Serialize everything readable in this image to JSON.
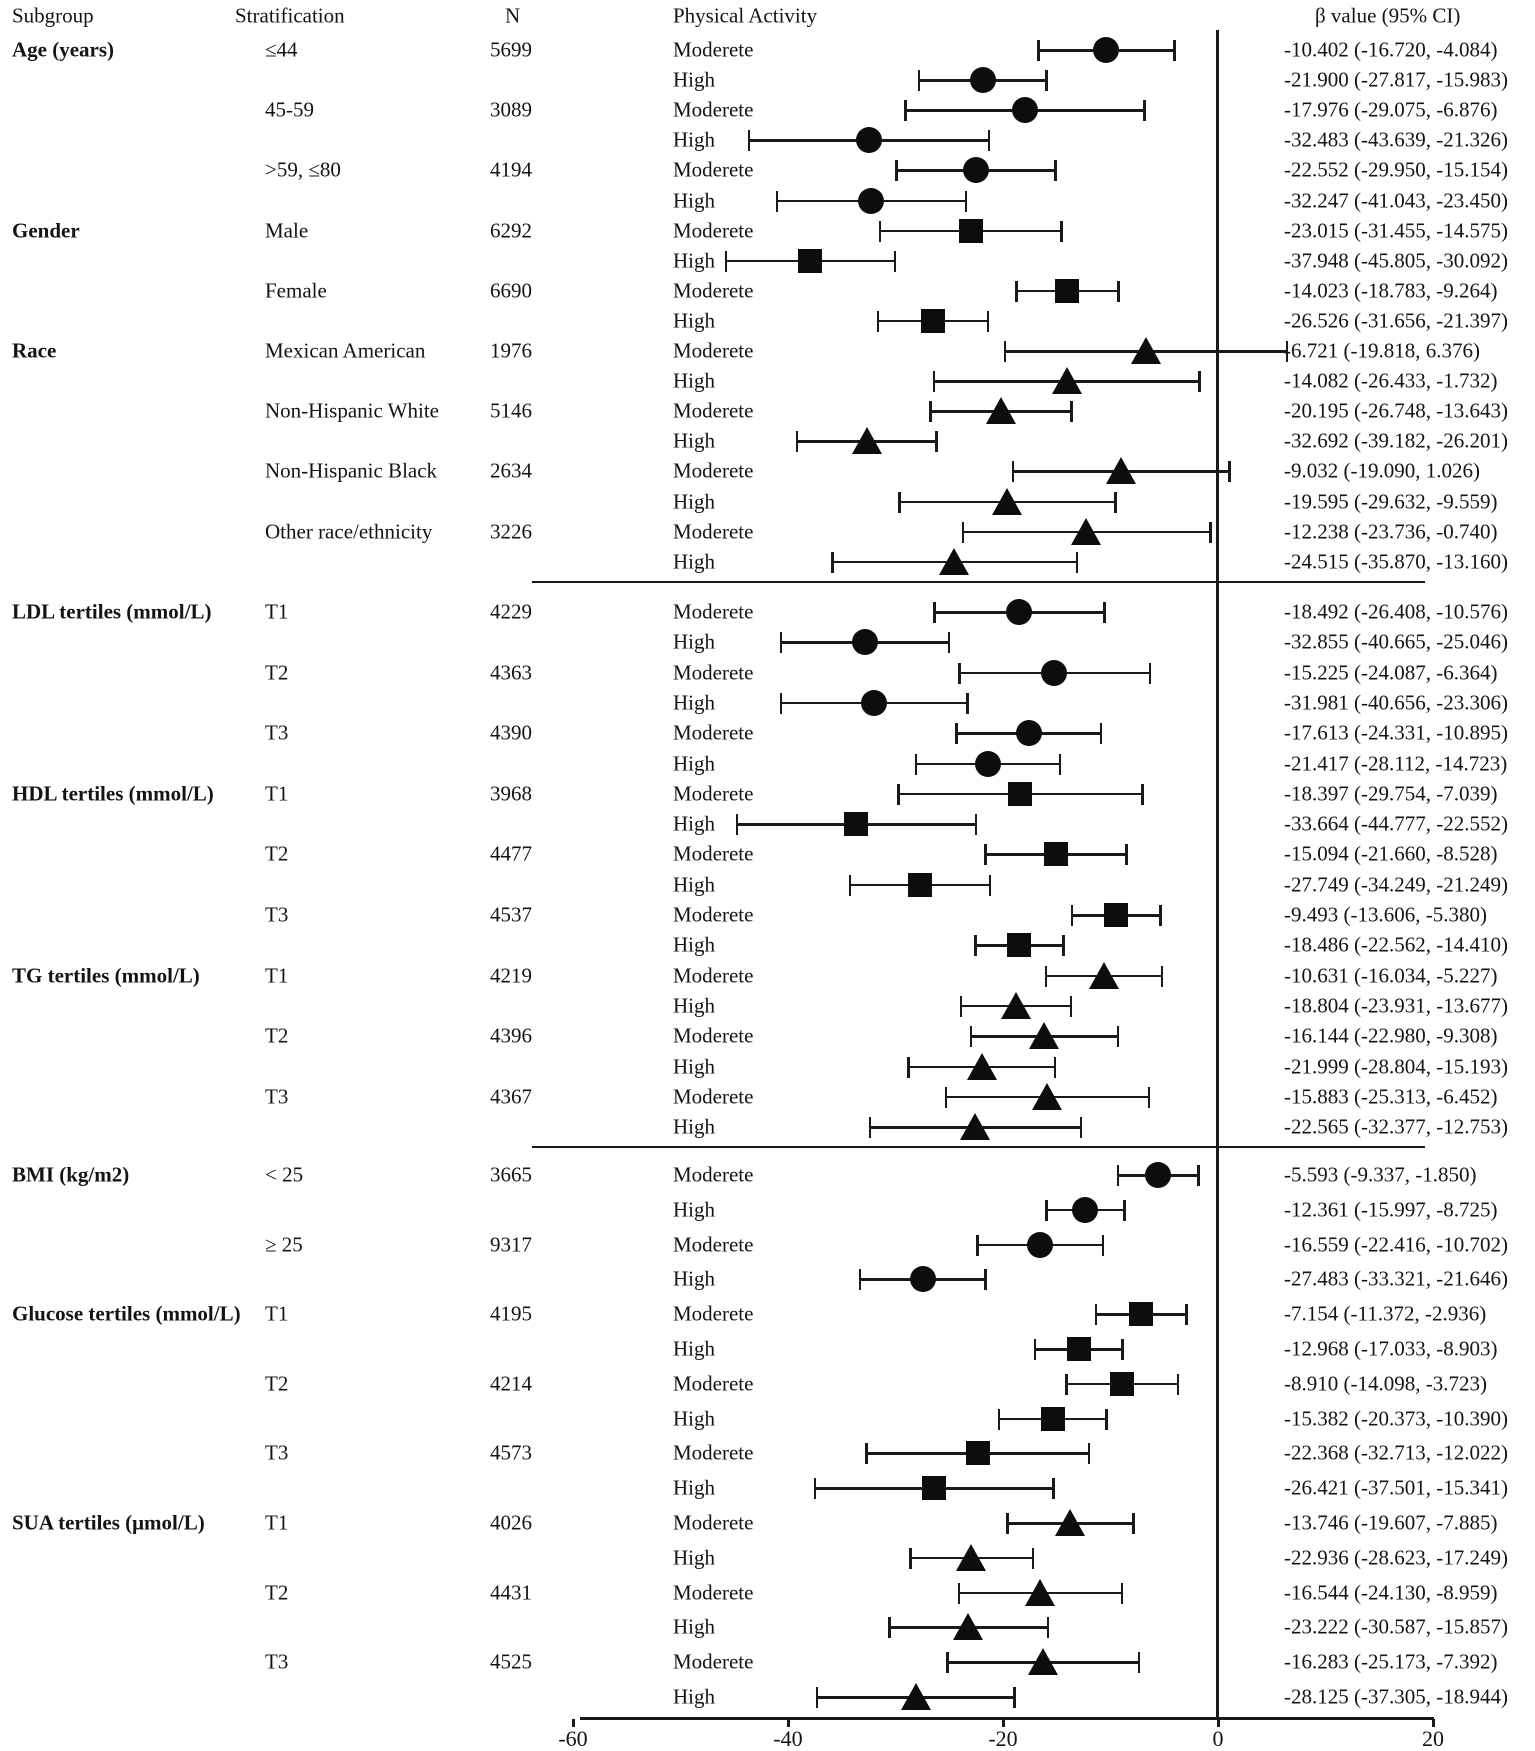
{
  "chart_data": {
    "type": "scatter",
    "subtype": "forest-plot",
    "title": "",
    "xlabel": "",
    "ylabel": "",
    "grid": false,
    "legend": "none",
    "marker_color": "#0d0d0d",
    "columns": [
      "Subgroup",
      "Stratification",
      "N",
      "Physical Activity",
      "β value (95% CI)"
    ],
    "x_axis": {
      "range": [
        -60,
        20
      ],
      "ticks": [
        {
          "label": "-60",
          "value": -60
        },
        {
          "label": "-40",
          "value": -40
        },
        {
          "label": "-20",
          "value": -20
        },
        {
          "label": "0",
          "value": 0
        },
        {
          "label": "20",
          "value": 20
        }
      ],
      "reference_line_at": 0
    },
    "separators_after_groups": [
      2,
      5
    ],
    "groups": [
      {
        "subgroup": "Age (years)",
        "marker": "circle",
        "strata": [
          {
            "label": "≤44",
            "n": "5699",
            "rows": [
              {
                "activity": "Moderete",
                "beta": -10.402,
                "lo": -16.72,
                "hi": -4.084,
                "text": "-10.402 (-16.720, -4.084)"
              },
              {
                "activity": "High",
                "beta": -21.9,
                "lo": -27.817,
                "hi": -15.983,
                "text": "-21.900 (-27.817, -15.983)"
              }
            ]
          },
          {
            "label": "45-59",
            "n": "3089",
            "rows": [
              {
                "activity": "Moderete",
                "beta": -17.976,
                "lo": -29.075,
                "hi": -6.876,
                "text": "-17.976 (-29.075, -6.876)"
              },
              {
                "activity": "High",
                "beta": -32.483,
                "lo": -43.639,
                "hi": -21.326,
                "text": "-32.483 (-43.639, -21.326)"
              }
            ]
          },
          {
            "label": ">59, ≤80",
            "n": "4194",
            "rows": [
              {
                "activity": "Moderete",
                "beta": -22.552,
                "lo": -29.95,
                "hi": -15.154,
                "text": "-22.552 (-29.950, -15.154)"
              },
              {
                "activity": "High",
                "beta": -32.247,
                "lo": -41.043,
                "hi": -23.45,
                "text": "-32.247 (-41.043, -23.450)"
              }
            ]
          }
        ]
      },
      {
        "subgroup": "Gender",
        "marker": "square",
        "strata": [
          {
            "label": "Male",
            "n": "6292",
            "rows": [
              {
                "activity": "Moderete",
                "beta": -23.015,
                "lo": -31.455,
                "hi": -14.575,
                "text": "-23.015 (-31.455, -14.575)"
              },
              {
                "activity": "High",
                "beta": -37.948,
                "lo": -45.805,
                "hi": -30.092,
                "text": "-37.948 (-45.805, -30.092)"
              }
            ]
          },
          {
            "label": "Female",
            "n": "6690",
            "rows": [
              {
                "activity": "Moderete",
                "beta": -14.023,
                "lo": -18.783,
                "hi": -9.264,
                "text": "-14.023 (-18.783, -9.264)"
              },
              {
                "activity": "High",
                "beta": -26.526,
                "lo": -31.656,
                "hi": -21.397,
                "text": "-26.526 (-31.656, -21.397)"
              }
            ]
          }
        ]
      },
      {
        "subgroup": "Race",
        "marker": "triangle",
        "strata": [
          {
            "label": "Mexican American",
            "n": "1976",
            "rows": [
              {
                "activity": "Moderete",
                "beta": -6.721,
                "lo": -19.818,
                "hi": 6.376,
                "text": "-6.721 (-19.818, 6.376)"
              },
              {
                "activity": "High",
                "beta": -14.082,
                "lo": -26.433,
                "hi": -1.732,
                "text": "-14.082 (-26.433, -1.732)"
              }
            ]
          },
          {
            "label": "Non-Hispanic White",
            "n": "5146",
            "rows": [
              {
                "activity": "Moderete",
                "beta": -20.195,
                "lo": -26.748,
                "hi": -13.643,
                "text": "-20.195 (-26.748, -13.643)"
              },
              {
                "activity": "High",
                "beta": -32.692,
                "lo": -39.182,
                "hi": -26.201,
                "text": "-32.692 (-39.182, -26.201)"
              }
            ]
          },
          {
            "label": "Non-Hispanic Black",
            "n": "2634",
            "rows": [
              {
                "activity": "Moderete",
                "beta": -9.032,
                "lo": -19.09,
                "hi": 1.026,
                "text": "-9.032 (-19.090, 1.026)"
              },
              {
                "activity": "High",
                "beta": -19.595,
                "lo": -29.632,
                "hi": -9.559,
                "text": "-19.595 (-29.632, -9.559)"
              }
            ]
          },
          {
            "label": "Other race/ethnicity",
            "n": "3226",
            "rows": [
              {
                "activity": "Moderete",
                "beta": -12.238,
                "lo": -23.736,
                "hi": -0.74,
                "text": "-12.238 (-23.736, -0.740)"
              },
              {
                "activity": "High",
                "beta": -24.515,
                "lo": -35.87,
                "hi": -13.16,
                "text": "-24.515 (-35.870, -13.160)"
              }
            ]
          }
        ]
      },
      {
        "subgroup": "LDL tertiles (mmol/L)",
        "marker": "circle",
        "strata": [
          {
            "label": "T1",
            "n": "4229",
            "rows": [
              {
                "activity": "Moderete",
                "beta": -18.492,
                "lo": -26.408,
                "hi": -10.576,
                "text": "-18.492 (-26.408, -10.576)"
              },
              {
                "activity": "High",
                "beta": -32.855,
                "lo": -40.665,
                "hi": -25.046,
                "text": "-32.855 (-40.665, -25.046)"
              }
            ]
          },
          {
            "label": "T2",
            "n": "4363",
            "rows": [
              {
                "activity": "Moderete",
                "beta": -15.225,
                "lo": -24.087,
                "hi": -6.364,
                "text": "-15.225 (-24.087, -6.364)"
              },
              {
                "activity": "High",
                "beta": -31.981,
                "lo": -40.656,
                "hi": -23.306,
                "text": "-31.981 (-40.656, -23.306)"
              }
            ]
          },
          {
            "label": "T3",
            "n": "4390",
            "rows": [
              {
                "activity": "Moderete",
                "beta": -17.613,
                "lo": -24.331,
                "hi": -10.895,
                "text": "-17.613 (-24.331, -10.895)"
              },
              {
                "activity": "High",
                "beta": -21.417,
                "lo": -28.112,
                "hi": -14.723,
                "text": "-21.417 (-28.112, -14.723)"
              }
            ]
          }
        ]
      },
      {
        "subgroup": "HDL tertiles (mmol/L)",
        "marker": "square",
        "strata": [
          {
            "label": "T1",
            "n": "3968",
            "rows": [
              {
                "activity": "Moderete",
                "beta": -18.397,
                "lo": -29.754,
                "hi": -7.039,
                "text": "-18.397 (-29.754, -7.039)"
              },
              {
                "activity": "High",
                "beta": -33.664,
                "lo": -44.777,
                "hi": -22.552,
                "text": "-33.664 (-44.777, -22.552)"
              }
            ]
          },
          {
            "label": "T2",
            "n": "4477",
            "rows": [
              {
                "activity": "Moderete",
                "beta": -15.094,
                "lo": -21.66,
                "hi": -8.528,
                "text": "-15.094 (-21.660, -8.528)"
              },
              {
                "activity": "High",
                "beta": -27.749,
                "lo": -34.249,
                "hi": -21.249,
                "text": "-27.749 (-34.249, -21.249)"
              }
            ]
          },
          {
            "label": "T3",
            "n": "4537",
            "rows": [
              {
                "activity": "Moderete",
                "beta": -9.493,
                "lo": -13.606,
                "hi": -5.38,
                "text": "-9.493 (-13.606, -5.380)"
              },
              {
                "activity": "High",
                "beta": -18.486,
                "lo": -22.562,
                "hi": -14.41,
                "text": "-18.486 (-22.562, -14.410)"
              }
            ]
          }
        ]
      },
      {
        "subgroup": "TG tertiles (mmol/L)",
        "marker": "triangle",
        "strata": [
          {
            "label": "T1",
            "n": "4219",
            "rows": [
              {
                "activity": "Moderete",
                "beta": -10.631,
                "lo": -16.034,
                "hi": -5.227,
                "text": "-10.631 (-16.034, -5.227)"
              },
              {
                "activity": "High",
                "beta": -18.804,
                "lo": -23.931,
                "hi": -13.677,
                "text": "-18.804 (-23.931, -13.677)"
              }
            ]
          },
          {
            "label": "T2",
            "n": "4396",
            "rows": [
              {
                "activity": "Moderete",
                "beta": -16.144,
                "lo": -22.98,
                "hi": -9.308,
                "text": "-16.144 (-22.980, -9.308)"
              },
              {
                "activity": "High",
                "beta": -21.999,
                "lo": -28.804,
                "hi": -15.193,
                "text": "-21.999 (-28.804, -15.193)"
              }
            ]
          },
          {
            "label": "T3",
            "n": "4367",
            "rows": [
              {
                "activity": "Moderete",
                "beta": -15.883,
                "lo": -25.313,
                "hi": -6.452,
                "text": "-15.883 (-25.313, -6.452)"
              },
              {
                "activity": "High",
                "beta": -22.565,
                "lo": -32.377,
                "hi": -12.753,
                "text": "-22.565 (-32.377, -12.753)"
              }
            ]
          }
        ]
      },
      {
        "subgroup": "BMI (kg/m2)",
        "marker": "circle",
        "strata": [
          {
            "label": "< 25",
            "n": "3665",
            "rows": [
              {
                "activity": "Moderete",
                "beta": -5.593,
                "lo": -9.337,
                "hi": -1.85,
                "text": "-5.593 (-9.337, -1.850)"
              },
              {
                "activity": "High",
                "beta": -12.361,
                "lo": -15.997,
                "hi": -8.725,
                "text": "-12.361 (-15.997, -8.725)"
              }
            ]
          },
          {
            "label": "≥ 25",
            "n": "9317",
            "rows": [
              {
                "activity": "Moderete",
                "beta": -16.559,
                "lo": -22.416,
                "hi": -10.702,
                "text": "-16.559 (-22.416, -10.702)"
              },
              {
                "activity": "High",
                "beta": -27.483,
                "lo": -33.321,
                "hi": -21.646,
                "text": "-27.483 (-33.321, -21.646)"
              }
            ]
          }
        ]
      },
      {
        "subgroup": "Glucose tertiles (mmol/L)",
        "marker": "square",
        "strata": [
          {
            "label": "T1",
            "n": "4195",
            "rows": [
              {
                "activity": "Moderete",
                "beta": -7.154,
                "lo": -11.372,
                "hi": -2.936,
                "text": "-7.154 (-11.372, -2.936)"
              },
              {
                "activity": "High",
                "beta": -12.968,
                "lo": -17.033,
                "hi": -8.903,
                "text": "-12.968 (-17.033, -8.903)"
              }
            ]
          },
          {
            "label": "T2",
            "n": "4214",
            "rows": [
              {
                "activity": "Moderete",
                "beta": -8.91,
                "lo": -14.098,
                "hi": -3.723,
                "text": "-8.910 (-14.098, -3.723)"
              },
              {
                "activity": "High",
                "beta": -15.382,
                "lo": -20.373,
                "hi": -10.39,
                "text": "-15.382 (-20.373, -10.390)"
              }
            ]
          },
          {
            "label": "T3",
            "n": "4573",
            "rows": [
              {
                "activity": "Moderete",
                "beta": -22.368,
                "lo": -32.713,
                "hi": -12.022,
                "text": "-22.368 (-32.713, -12.022)"
              },
              {
                "activity": "High",
                "beta": -26.421,
                "lo": -37.501,
                "hi": -15.341,
                "text": "-26.421 (-37.501, -15.341)"
              }
            ]
          }
        ]
      },
      {
        "subgroup": "SUA tertiles (μmol/L)",
        "marker": "triangle",
        "strata": [
          {
            "label": "T1",
            "n": "4026",
            "rows": [
              {
                "activity": "Moderete",
                "beta": -13.746,
                "lo": -19.607,
                "hi": -7.885,
                "text": "-13.746 (-19.607, -7.885)"
              },
              {
                "activity": "High",
                "beta": -22.936,
                "lo": -28.623,
                "hi": -17.249,
                "text": "-22.936 (-28.623, -17.249)"
              }
            ]
          },
          {
            "label": "T2",
            "n": "4431",
            "rows": [
              {
                "activity": "Moderete",
                "beta": -16.544,
                "lo": -24.13,
                "hi": -8.959,
                "text": "-16.544 (-24.130, -8.959)"
              },
              {
                "activity": "High",
                "beta": -23.222,
                "lo": -30.587,
                "hi": -15.857,
                "text": "-23.222 (-30.587, -15.857)"
              }
            ]
          },
          {
            "label": "T3",
            "n": "4525",
            "rows": [
              {
                "activity": "Moderete",
                "beta": -16.283,
                "lo": -25.173,
                "hi": -7.392,
                "text": "-16.283 (-25.173, -7.392)"
              },
              {
                "activity": "High",
                "beta": -28.125,
                "lo": -37.305,
                "hi": -18.944,
                "text": "-28.125 (-37.305, -18.944)"
              }
            ]
          }
        ]
      }
    ]
  }
}
